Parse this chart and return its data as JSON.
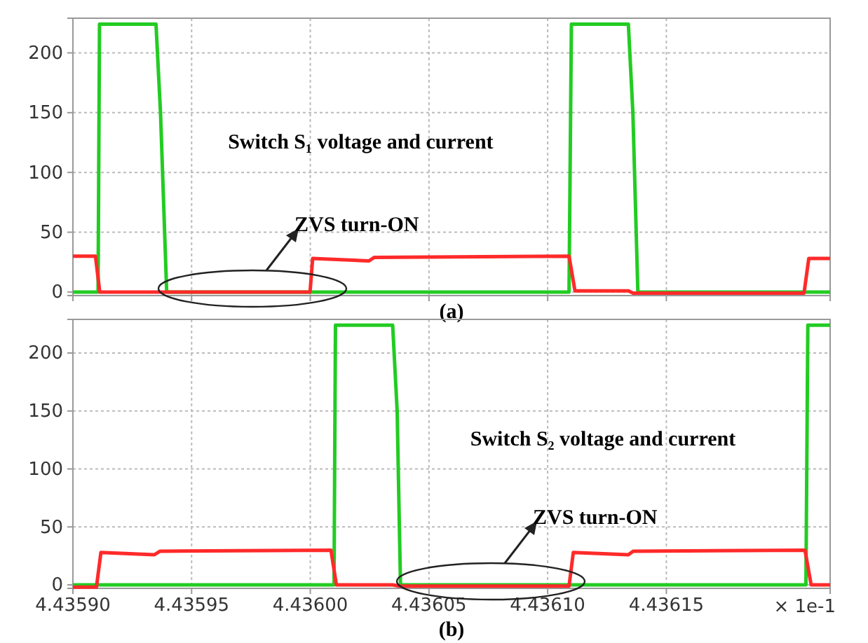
{
  "chart_data": [
    {
      "type": "line",
      "xlabel": "(a)",
      "xlim": [
        4.4359,
        4.436219
      ],
      "xticks": [
        4.4359,
        4.43595,
        4.436,
        4.43605,
        4.4361,
        4.43615
      ],
      "ylim": [
        -3,
        229
      ],
      "yticks": [
        0,
        50,
        100,
        150,
        200
      ],
      "grid": true,
      "tick_labels": "y",
      "marker": "none",
      "line_style": "solid",
      "annotations": [
        "Switch S₁ voltage and current",
        "ZVS turn-ON"
      ],
      "series": [
        {
          "color": "#22cc22",
          "x": [
            4.4359,
            4.4359106,
            4.4359112,
            4.435935,
            4.4359369,
            4.4359395,
            4.436109,
            4.43611,
            4.436134,
            4.4361359,
            4.436138,
            4.436219
          ],
          "values": [
            0,
            0,
            224,
            224,
            150,
            0,
            0,
            224,
            224,
            150,
            0,
            0
          ]
        },
        {
          "color": "#ff2a2a",
          "x": [
            4.4359,
            4.4359095,
            4.4359113,
            4.4359999,
            4.436001,
            4.4360247,
            4.436027,
            4.436109,
            4.4361115,
            4.436134,
            4.436136,
            4.436208,
            4.43621,
            4.436219
          ],
          "values": [
            30,
            30,
            0,
            0,
            28,
            26,
            29,
            30,
            1,
            1,
            -1,
            -1,
            28,
            28
          ]
        }
      ]
    },
    {
      "type": "line",
      "xlabel": "(b)",
      "xlim": [
        4.4359,
        4.436219
      ],
      "xticks": [
        {
          "value": 4.4359,
          "label": "4.43590"
        },
        {
          "value": 4.43595,
          "label": "4.43595"
        },
        {
          "value": 4.436,
          "label": "4.43600"
        },
        {
          "value": 4.43605,
          "label": "4.43605"
        },
        {
          "value": 4.4361,
          "label": "4.43610"
        },
        {
          "value": 4.43615,
          "label": "4.43615"
        }
      ],
      "ylim": [
        -3,
        229
      ],
      "yticks": [
        0,
        50,
        100,
        150,
        200
      ],
      "grid": true,
      "marker": "none",
      "line_style": "solid",
      "annotations": [
        "Switch S₂ voltage and current",
        "ZVS turn-ON",
        "× 1e-1"
      ],
      "series": [
        {
          "color": "#22cc22",
          "x": [
            4.4359,
            4.43601,
            4.4360106,
            4.4360347,
            4.4360366,
            4.436038,
            4.4362088,
            4.4362096,
            4.436219
          ],
          "values": [
            0,
            0,
            224,
            224,
            150,
            0,
            0,
            224,
            224
          ]
        },
        {
          "color": "#ff2a2a",
          "x": [
            4.4359,
            4.4359099,
            4.4359118,
            4.4359343,
            4.4359366,
            4.4360087,
            4.436011,
            4.4360347,
            4.4360375,
            4.436109,
            4.4361108,
            4.436134,
            4.436136,
            4.4362084,
            4.436211,
            4.436219
          ],
          "values": [
            -2,
            -2,
            28,
            26,
            29,
            30,
            0,
            0,
            -1,
            -1,
            28,
            26,
            29,
            30,
            0,
            0
          ]
        }
      ]
    }
  ]
}
